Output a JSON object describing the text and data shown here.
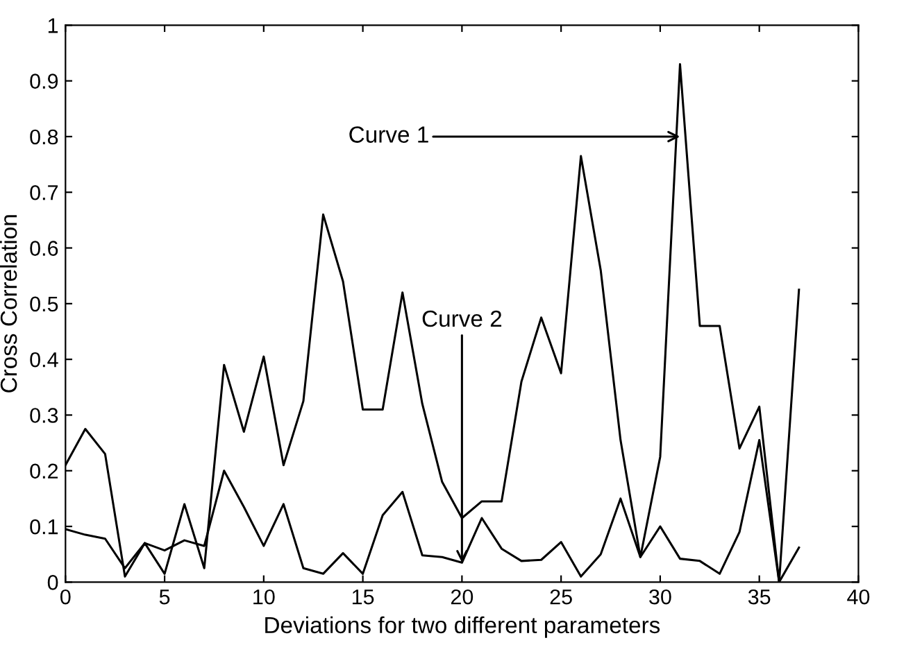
{
  "chart_data": {
    "type": "line",
    "xlabel": "Deviations for two different parameters",
    "ylabel": "Cross Correlation",
    "x": [
      0,
      1,
      2,
      3,
      4,
      5,
      6,
      7,
      8,
      9,
      10,
      11,
      12,
      13,
      14,
      15,
      16,
      17,
      18,
      19,
      20,
      21,
      22,
      23,
      24,
      25,
      26,
      27,
      28,
      29,
      30,
      31,
      32,
      33,
      34,
      35,
      36,
      37
    ],
    "series": [
      {
        "color": "#000000",
        "values": [
          0.21,
          0.275,
          0.23,
          0.01,
          0.07,
          0.015,
          0.14,
          0.025,
          0.39,
          0.27,
          0.405,
          0.21,
          0.325,
          0.66,
          0.54,
          0.31,
          0.31,
          0.52,
          0.32,
          0.18,
          0.115,
          0.145,
          0.145,
          0.36,
          0.475,
          0.375,
          0.765,
          0.56,
          0.255,
          0.045,
          0.225,
          0.93,
          0.46,
          0.46,
          0.24,
          0.315,
          0.0,
          0.525
        ]
      },
      {
        "color": "#000000",
        "values": [
          0.095,
          0.085,
          0.078,
          0.025,
          0.07,
          0.057,
          0.075,
          0.065,
          0.2,
          0.135,
          0.065,
          0.14,
          0.025,
          0.015,
          0.052,
          0.015,
          0.12,
          0.162,
          0.048,
          0.045,
          0.035,
          0.115,
          0.06,
          0.038,
          0.04,
          0.072,
          0.01,
          0.05,
          0.15,
          0.045,
          0.1,
          0.042,
          0.038,
          0.015,
          0.09,
          0.255,
          0.0,
          0.062
        ]
      }
    ],
    "annotations": [
      {
        "text": "Curve 1",
        "x": 31,
        "y": 0.8
      },
      {
        "text": "Curve 2",
        "x": 20,
        "y": 0.035
      }
    ],
    "xlim": [
      0,
      40
    ],
    "xticks": [
      0,
      5,
      10,
      15,
      20,
      25,
      30,
      35,
      40
    ],
    "ylim": [
      0,
      1
    ],
    "yticks": [
      0,
      0.1,
      0.2,
      0.3,
      0.4,
      0.5,
      0.6,
      0.7,
      0.8,
      0.9,
      1
    ],
    "grid": false,
    "legend": false,
    "marker": "none",
    "line_style": "solid"
  }
}
